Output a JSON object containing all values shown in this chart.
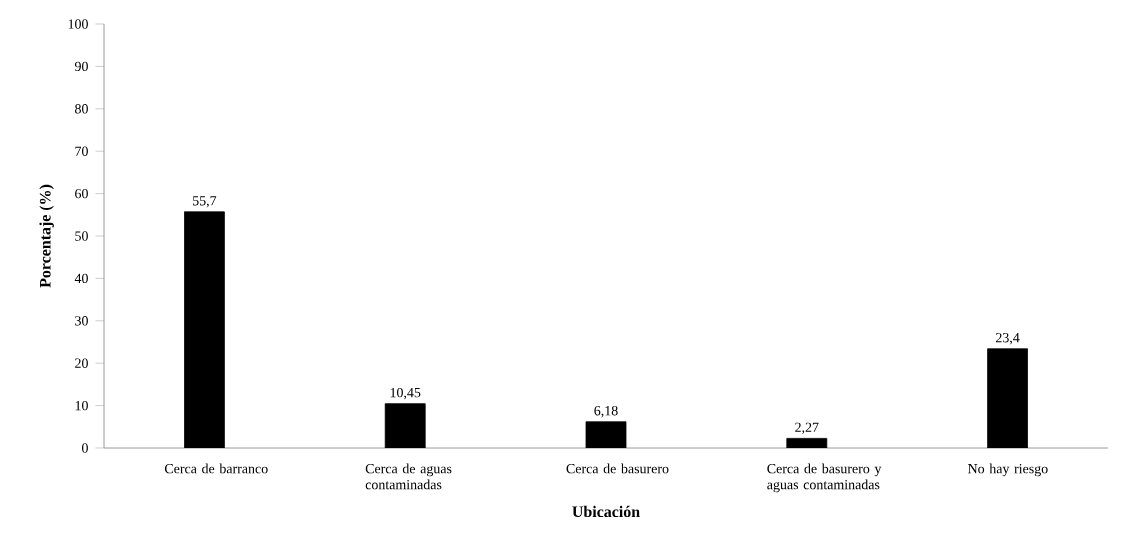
{
  "chart_data": {
    "type": "bar",
    "xlabel": "Ubicación",
    "ylabel": "Porcentaje (%)",
    "categories": [
      "Cerca de barranco",
      "Cerca de aguas contaminadas",
      "Cerca de basurero",
      "Cerca de basurero y aguas contaminadas",
      "No hay riesgo"
    ],
    "values": [
      55.7,
      10.45,
      6.18,
      2.27,
      23.4
    ],
    "value_labels": [
      "55,7",
      "10,45",
      "6,18",
      "2,27",
      "23,4"
    ],
    "color": "#000000",
    "ylim": [
      0,
      100
    ],
    "yticks": [
      0,
      10,
      20,
      30,
      40,
      50,
      60,
      70,
      80,
      90,
      100
    ],
    "grid": false
  }
}
